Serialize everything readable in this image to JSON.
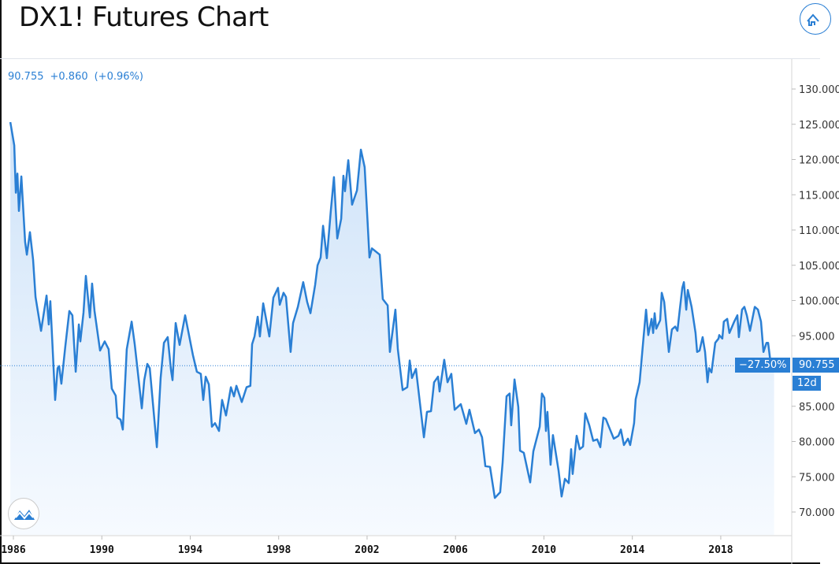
{
  "header": {
    "title": "DX1! Futures Chart",
    "home_icon": "home-icon"
  },
  "legend": {
    "price": "90.755",
    "change": "+0.860",
    "change_pct": "(+0.96%)"
  },
  "overlays": {
    "last_price": "90.755",
    "pct_change_label": "−27.50%",
    "countdown": "12d"
  },
  "colors": {
    "line": "#2a7fd4",
    "fill_top": "#cfe3f8",
    "fill_bottom": "#f4f9fe",
    "tag": "#2a7fd4"
  },
  "chart_data": {
    "type": "area",
    "title": "DX1! Futures Chart",
    "xlabel": "",
    "ylabel": "",
    "ylim": [
      65.3,
      133.5
    ],
    "xlim": [
      1985.5,
      2021.5
    ],
    "grid": false,
    "x_ticks": [
      "1986",
      "1990",
      "1994",
      "1998",
      "2002",
      "2006",
      "2010",
      "2014",
      "2018"
    ],
    "y_ticks": [
      "130.000",
      "125.000",
      "120.000",
      "115.000",
      "110.000",
      "105.000",
      "100.000",
      "95.000",
      "85.000",
      "80.000",
      "75.000",
      "70.000"
    ],
    "y_tick_values": [
      130,
      125,
      120,
      115,
      110,
      105,
      100,
      95,
      85,
      80,
      75,
      70
    ],
    "x": [
      1985.86,
      1986.04,
      1986.11,
      1986.18,
      1986.25,
      1986.36,
      1986.53,
      1986.61,
      1986.75,
      1986.89,
      1987.0,
      1987.25,
      1987.5,
      1987.6,
      1987.67,
      1987.89,
      1988.0,
      1988.07,
      1988.17,
      1988.35,
      1988.53,
      1988.67,
      1988.82,
      1988.96,
      1989.03,
      1989.17,
      1989.28,
      1989.46,
      1989.56,
      1989.67,
      1989.92,
      1990.13,
      1990.31,
      1990.45,
      1990.63,
      1990.7,
      1990.85,
      1990.95,
      1991.13,
      1991.35,
      1991.49,
      1991.6,
      1991.81,
      1991.92,
      1992.06,
      1992.17,
      1992.49,
      1992.66,
      1992.81,
      1992.98,
      1993.13,
      1993.2,
      1993.34,
      1993.52,
      1993.77,
      1994.12,
      1994.3,
      1994.48,
      1994.59,
      1994.7,
      1994.84,
      1994.98,
      1995.12,
      1995.3,
      1995.44,
      1995.62,
      1995.84,
      1995.98,
      1996.09,
      1996.33,
      1996.55,
      1996.72,
      1996.8,
      1996.91,
      1997.05,
      1997.15,
      1997.3,
      1997.58,
      1997.76,
      1997.97,
      1998.05,
      1998.22,
      1998.33,
      1998.54,
      1998.65,
      1998.87,
      1999.11,
      1999.29,
      1999.44,
      1999.65,
      1999.76,
      1999.9,
      2000.01,
      2000.18,
      2000.36,
      2000.5,
      2000.65,
      2000.83,
      2000.93,
      2001.0,
      2001.15,
      2001.32,
      2001.54,
      2001.72,
      2001.89,
      2002.11,
      2002.22,
      2002.57,
      2002.71,
      2002.93,
      2003.03,
      2003.28,
      2003.39,
      2003.61,
      2003.82,
      2003.93,
      2004.03,
      2004.21,
      2004.57,
      2004.71,
      2004.89,
      2005.03,
      2005.21,
      2005.28,
      2005.49,
      2005.64,
      2005.81,
      2005.96,
      2006.24,
      2006.49,
      2006.63,
      2006.88,
      2007.06,
      2007.2,
      2007.35,
      2007.56,
      2007.78,
      2008.02,
      2008.13,
      2008.31,
      2008.45,
      2008.52,
      2008.67,
      2008.84,
      2008.92,
      2009.09,
      2009.38,
      2009.52,
      2009.81,
      2009.91,
      2010.02,
      2010.09,
      2010.16,
      2010.3,
      2010.41,
      2010.66,
      2010.8,
      2010.95,
      2011.12,
      2011.23,
      2011.3,
      2011.48,
      2011.62,
      2011.77,
      2011.87,
      2012.05,
      2012.23,
      2012.41,
      2012.55,
      2012.69,
      2012.8,
      2012.94,
      2013.16,
      2013.37,
      2013.48,
      2013.62,
      2013.8,
      2013.9,
      2014.08,
      2014.15,
      2014.33,
      2014.51,
      2014.62,
      2014.72,
      2014.87,
      2014.94,
      2015.01,
      2015.08,
      2015.26,
      2015.33,
      2015.44,
      2015.65,
      2015.79,
      2015.94,
      2016.04,
      2016.15,
      2016.26,
      2016.33,
      2016.44,
      2016.51,
      2016.68,
      2016.86,
      2016.93,
      2017.04,
      2017.18,
      2017.29,
      2017.4,
      2017.47,
      2017.58,
      2017.75,
      2017.9,
      2017.93,
      2018.07,
      2018.14,
      2018.29,
      2018.39,
      2018.61,
      2018.75,
      2018.82,
      2018.96,
      2019.07,
      2019.18,
      2019.32,
      2019.54,
      2019.68,
      2019.82,
      2019.93,
      2020.07,
      2020.14,
      2020.27
    ],
    "values": [
      125.3,
      122.0,
      115.3,
      118.0,
      112.7,
      117.6,
      108.3,
      106.5,
      109.7,
      105.8,
      100.5,
      95.7,
      100.7,
      96.6,
      99.9,
      85.9,
      90.4,
      90.7,
      88.2,
      93.5,
      98.5,
      97.9,
      89.9,
      96.6,
      94.2,
      98.3,
      103.5,
      97.6,
      102.4,
      98.5,
      92.9,
      94.2,
      93.1,
      87.5,
      86.5,
      83.4,
      83.1,
      81.7,
      93.1,
      97.0,
      93.8,
      90.7,
      84.7,
      88.7,
      91.0,
      90.4,
      79.2,
      89.0,
      94.0,
      94.8,
      90.1,
      88.7,
      96.8,
      93.7,
      97.9,
      92.3,
      89.9,
      89.6,
      85.9,
      89.2,
      88.1,
      82.1,
      82.6,
      81.5,
      85.9,
      83.7,
      87.7,
      86.4,
      87.9,
      85.6,
      87.7,
      87.9,
      93.8,
      94.9,
      97.7,
      94.9,
      99.6,
      94.9,
      100.4,
      101.8,
      99.4,
      101.1,
      100.5,
      92.7,
      96.8,
      99.1,
      102.6,
      99.8,
      98.2,
      102.2,
      105.0,
      106.1,
      110.6,
      106.0,
      112.7,
      117.5,
      108.8,
      111.6,
      117.7,
      115.5,
      119.9,
      113.6,
      115.6,
      121.4,
      118.9,
      106.1,
      107.4,
      106.5,
      100.2,
      99.3,
      92.7,
      98.7,
      93.1,
      87.3,
      87.7,
      91.5,
      89.0,
      90.3,
      80.6,
      84.2,
      84.3,
      88.4,
      89.2,
      87.1,
      91.6,
      88.4,
      89.6,
      84.5,
      85.3,
      82.5,
      84.5,
      81.2,
      81.7,
      80.6,
      76.5,
      76.4,
      72.0,
      72.8,
      77.0,
      86.4,
      86.8,
      82.3,
      88.8,
      84.9,
      78.7,
      78.4,
      74.2,
      78.6,
      82.1,
      86.8,
      86.2,
      81.5,
      84.2,
      76.7,
      80.9,
      75.9,
      72.2,
      74.7,
      74.1,
      78.9,
      75.4,
      80.8,
      78.9,
      79.3,
      84.0,
      82.3,
      80.1,
      80.3,
      79.2,
      83.4,
      83.2,
      82.1,
      80.4,
      80.8,
      81.7,
      79.5,
      80.4,
      79.5,
      82.6,
      86.0,
      88.4,
      94.9,
      98.7,
      95.1,
      97.4,
      95.4,
      98.2,
      96.0,
      97.2,
      101.1,
      99.8,
      92.7,
      95.9,
      96.3,
      95.7,
      98.8,
      101.8,
      102.6,
      98.7,
      101.5,
      99.1,
      95.4,
      92.7,
      92.9,
      94.8,
      92.7,
      88.4,
      90.4,
      89.8,
      94.0,
      94.6,
      95.1,
      94.6,
      97.0,
      97.4,
      95.4,
      97.0,
      97.9,
      94.8,
      98.7,
      99.1,
      97.9,
      95.7,
      99.1,
      98.7,
      97.0,
      92.7,
      94.0,
      94.0,
      90.755
    ]
  }
}
